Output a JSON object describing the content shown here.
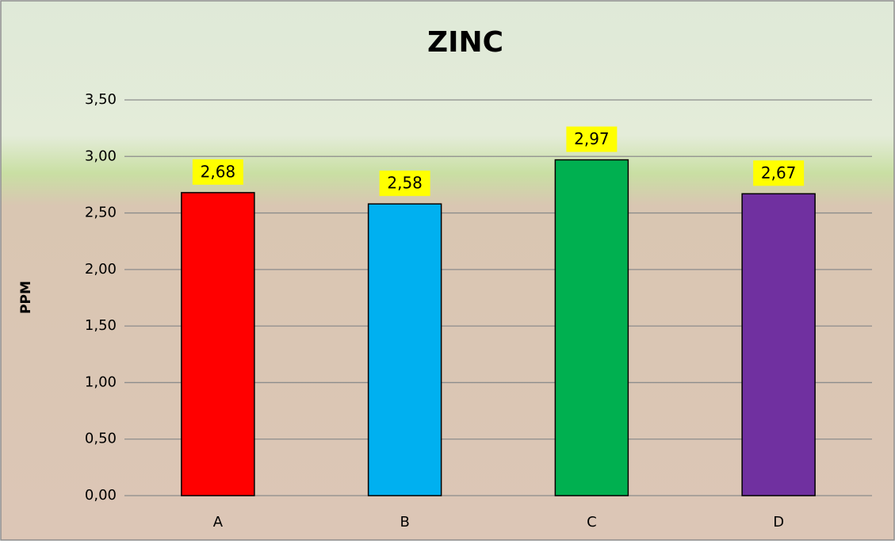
{
  "chart_data": {
    "type": "bar",
    "title": "ZINC",
    "y_label": "PPM",
    "categories": [
      "A",
      "B",
      "C",
      "D"
    ],
    "values": [
      2.68,
      2.58,
      2.97,
      2.67
    ],
    "value_labels": [
      "2,68",
      "2,58",
      "2,97",
      "2,67"
    ],
    "colors": [
      "#ff0000",
      "#00b0f0",
      "#00b050",
      "#7030a0"
    ],
    "ylim": [
      0,
      3.5
    ],
    "yticks": [
      {
        "value": 0,
        "label": "0,00"
      },
      {
        "value": 0.5,
        "label": "0,50"
      },
      {
        "value": 1,
        "label": "1,00"
      },
      {
        "value": 1.5,
        "label": "1,50"
      },
      {
        "value": 2,
        "label": "2,00"
      },
      {
        "value": 2.5,
        "label": "2,50"
      },
      {
        "value": 3,
        "label": "3,00"
      },
      {
        "value": 3.5,
        "label": "3,50"
      }
    ],
    "grid": true
  }
}
